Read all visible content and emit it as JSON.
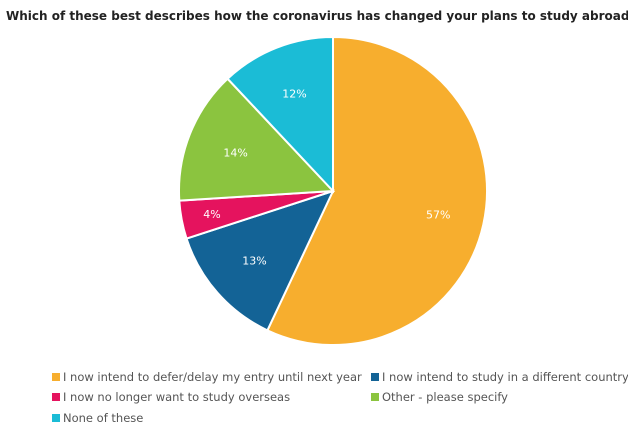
{
  "chart_data": {
    "type": "pie",
    "title": "Which of these best describes how the coronavirus has changed your plans to study abroad?",
    "slices": [
      {
        "label": "I now intend to defer/delay my entry until next year",
        "value": 57,
        "display": "57%",
        "color": "#F7AE2E"
      },
      {
        "label": "I now intend to study in a different country",
        "value": 13,
        "display": "13%",
        "color": "#136396"
      },
      {
        "label": "I now no longer want to study overseas",
        "value": 4,
        "display": "4%",
        "color": "#E5135E"
      },
      {
        "label": "Other - please specify",
        "value": 14,
        "display": "14%",
        "color": "#8BC43F"
      },
      {
        "label": "None of these",
        "value": 12,
        "display": "12%",
        "color": "#1BBCD6"
      }
    ],
    "legend_placement": "bottom"
  }
}
